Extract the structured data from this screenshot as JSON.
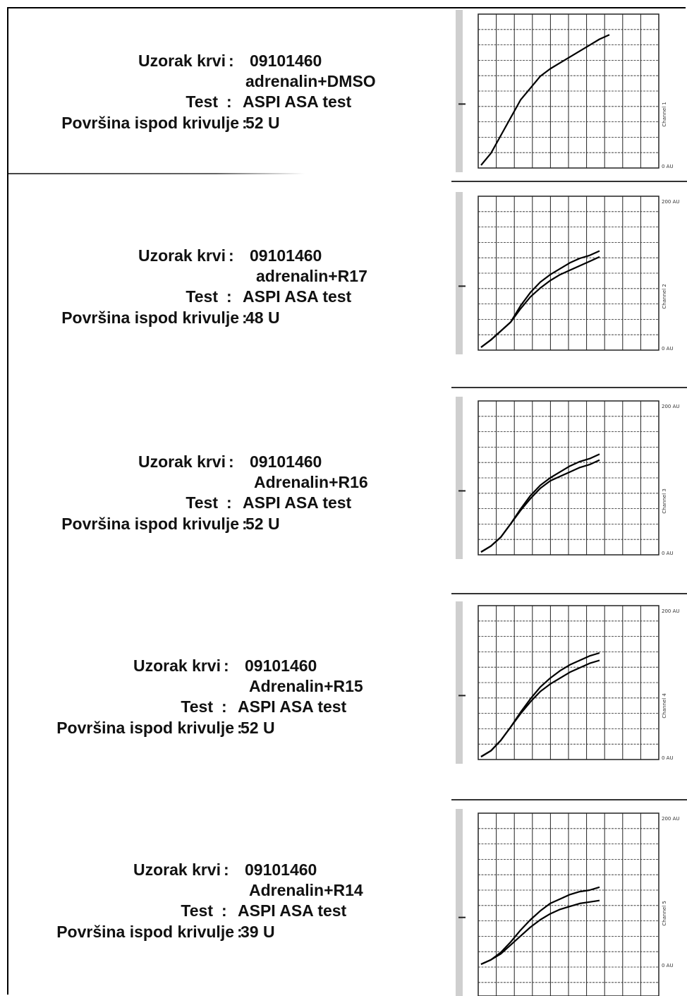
{
  "records": [
    {
      "label_sample": "Uzorak krvi",
      "sample_id": "09101460",
      "condition": "adrenalin+DMSO",
      "label_test": "Test",
      "test_name": "ASPI ASA test",
      "label_area": "Površina ispod krivulje",
      "area_value": "52 U",
      "chart": {
        "top_label": "",
        "channel_label": "Channel 1",
        "bottom_label": "0 AU",
        "curves": [
          [
            [
              0,
              0
            ],
            [
              0.5,
              0.8
            ],
            [
              1,
              2
            ],
            [
              1.5,
              3.2
            ],
            [
              2,
              4.4
            ],
            [
              2.5,
              5.2
            ],
            [
              3,
              6
            ],
            [
              3.5,
              6.5
            ],
            [
              4,
              6.9
            ],
            [
              4.5,
              7.3
            ],
            [
              5,
              7.7
            ],
            [
              5.5,
              8.1
            ],
            [
              6,
              8.5
            ],
            [
              6.5,
              8.8
            ]
          ]
        ]
      }
    },
    {
      "label_sample": "Uzorak krvi",
      "sample_id": "09101460",
      "condition": "adrenalin+R17",
      "label_test": "Test",
      "test_name": "ASPI ASA test",
      "label_area": "Površina ispod krivulje",
      "area_value": "48 U",
      "chart": {
        "top_label": "200 AU",
        "channel_label": "Channel 2",
        "bottom_label": "0 AU",
        "curves": [
          [
            [
              0,
              0
            ],
            [
              0.5,
              0.5
            ],
            [
              1,
              1.1
            ],
            [
              1.5,
              1.7
            ],
            [
              2,
              2.8
            ],
            [
              2.5,
              3.7
            ],
            [
              3,
              4.4
            ],
            [
              3.5,
              4.9
            ],
            [
              4,
              5.3
            ],
            [
              4.5,
              5.7
            ],
            [
              5,
              6
            ],
            [
              5.5,
              6.2
            ],
            [
              6,
              6.5
            ]
          ],
          [
            [
              0,
              0
            ],
            [
              0.5,
              0.5
            ],
            [
              1,
              1.1
            ],
            [
              1.5,
              1.7
            ],
            [
              2,
              2.6
            ],
            [
              2.5,
              3.4
            ],
            [
              3,
              4.0
            ],
            [
              3.5,
              4.5
            ],
            [
              4,
              4.9
            ],
            [
              4.5,
              5.2
            ],
            [
              5,
              5.5
            ],
            [
              5.5,
              5.8
            ],
            [
              6,
              6.1
            ]
          ]
        ]
      }
    },
    {
      "label_sample": "Uzorak krvi",
      "sample_id": "09101460",
      "condition": "Adrenalin+R16",
      "label_test": "Test",
      "test_name": "ASPI ASA test",
      "label_area": "Površina ispod krivulje",
      "area_value": "52 U",
      "chart": {
        "top_label": "200 AU",
        "channel_label": "Channel 3",
        "bottom_label": "0 AU",
        "curves": [
          [
            [
              0,
              0
            ],
            [
              0.5,
              0.4
            ],
            [
              1,
              1
            ],
            [
              1.5,
              1.9
            ],
            [
              2,
              2.9
            ],
            [
              2.5,
              3.8
            ],
            [
              3,
              4.5
            ],
            [
              3.5,
              5
            ],
            [
              4,
              5.4
            ],
            [
              4.5,
              5.8
            ],
            [
              5,
              6.1
            ],
            [
              5.5,
              6.3
            ],
            [
              6,
              6.6
            ]
          ],
          [
            [
              0,
              0
            ],
            [
              0.5,
              0.4
            ],
            [
              1,
              1
            ],
            [
              1.5,
              1.9
            ],
            [
              2,
              2.8
            ],
            [
              2.5,
              3.6
            ],
            [
              3,
              4.3
            ],
            [
              3.5,
              4.8
            ],
            [
              4,
              5.1
            ],
            [
              4.5,
              5.4
            ],
            [
              5,
              5.7
            ],
            [
              5.5,
              5.9
            ],
            [
              6,
              6.2
            ]
          ]
        ]
      }
    },
    {
      "label_sample": "Uzorak krvi",
      "sample_id": "09101460",
      "condition": "Adrenalin+R15",
      "label_test": "Test",
      "test_name": "ASPI ASA test",
      "label_area": "Površina ispod krivulje",
      "area_value": "52 U",
      "chart": {
        "top_label": "200 AU",
        "channel_label": "Channel 4",
        "bottom_label": "0 AU",
        "curves": [
          [
            [
              0,
              0
            ],
            [
              0.5,
              0.4
            ],
            [
              1,
              1.1
            ],
            [
              1.5,
              2
            ],
            [
              2,
              3
            ],
            [
              2.5,
              3.9
            ],
            [
              3,
              4.7
            ],
            [
              3.5,
              5.3
            ],
            [
              4,
              5.8
            ],
            [
              4.5,
              6.2
            ],
            [
              5,
              6.5
            ],
            [
              5.5,
              6.8
            ],
            [
              6,
              7
            ]
          ],
          [
            [
              0,
              0
            ],
            [
              0.5,
              0.4
            ],
            [
              1,
              1.1
            ],
            [
              1.5,
              2
            ],
            [
              2,
              2.9
            ],
            [
              2.5,
              3.7
            ],
            [
              3,
              4.4
            ],
            [
              3.5,
              4.9
            ],
            [
              4,
              5.3
            ],
            [
              4.5,
              5.7
            ],
            [
              5,
              6
            ],
            [
              5.5,
              6.3
            ],
            [
              6,
              6.5
            ]
          ]
        ]
      }
    },
    {
      "label_sample": "Uzorak krvi",
      "sample_id": "09101460",
      "condition": "Adrenalin+R14",
      "label_test": "Test",
      "test_name": "ASPI ASA test",
      "label_area": "Površina ispod krivulje",
      "area_value": "39 U",
      "chart": {
        "top_label": "200 AU",
        "channel_label": "Channel 5",
        "bottom_label": "0 AU",
        "curves": [
          [
            [
              0,
              0
            ],
            [
              0.5,
              0.3
            ],
            [
              1,
              0.8
            ],
            [
              1.5,
              1.5
            ],
            [
              2,
              2.3
            ],
            [
              2.5,
              3
            ],
            [
              3,
              3.6
            ],
            [
              3.5,
              4.1
            ],
            [
              4,
              4.4
            ],
            [
              4.5,
              4.7
            ],
            [
              5,
              4.9
            ],
            [
              5.5,
              5
            ],
            [
              6,
              5.2
            ]
          ],
          [
            [
              0,
              0
            ],
            [
              0.5,
              0.3
            ],
            [
              1,
              0.7
            ],
            [
              1.5,
              1.3
            ],
            [
              2,
              1.9
            ],
            [
              2.5,
              2.5
            ],
            [
              3,
              3
            ],
            [
              3.5,
              3.4
            ],
            [
              4,
              3.7
            ],
            [
              4.5,
              3.9
            ],
            [
              5,
              4.1
            ],
            [
              5.5,
              4.2
            ],
            [
              6,
              4.3
            ]
          ]
        ]
      }
    }
  ],
  "colors": {
    "text": "#111111",
    "grid": "#222222",
    "curve": "#000000",
    "chart_background": "#ffffff"
  }
}
